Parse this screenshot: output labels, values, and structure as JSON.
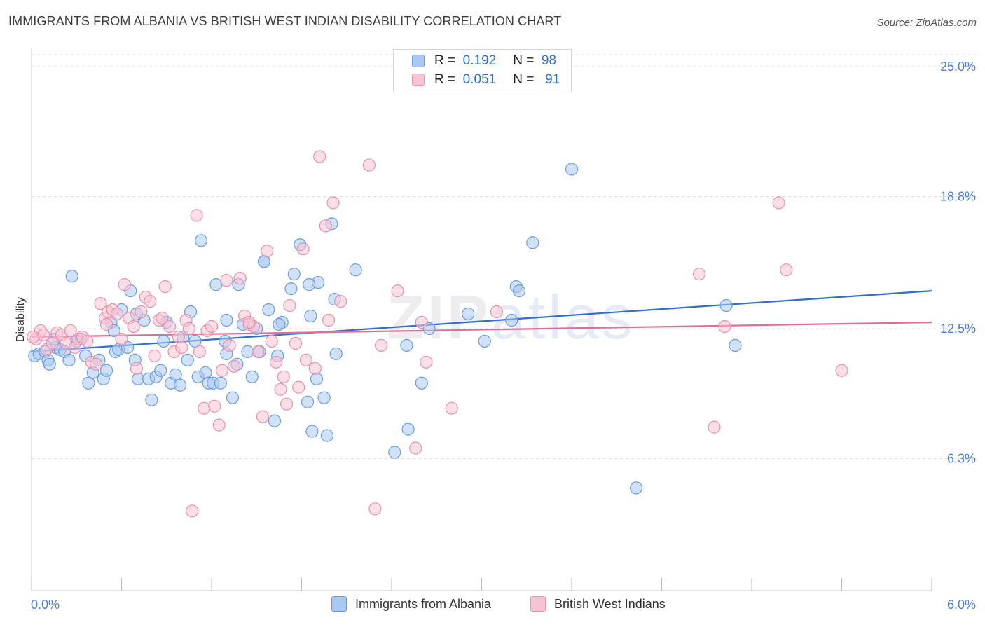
{
  "title": "IMMIGRANTS FROM ALBANIA VS BRITISH WEST INDIAN DISABILITY CORRELATION CHART",
  "source": "Source: ZipAtlas.com",
  "watermark": {
    "zip": "ZIP",
    "atlas": "atlas"
  },
  "legend": {
    "rows": [
      {
        "r_label": "R =",
        "r_value": "0.192",
        "n_label": "N =",
        "n_value": "98",
        "color": "#a9c8f2",
        "border": "#6a9de0"
      },
      {
        "r_label": "R =",
        "r_value": "0.051",
        "n_label": "N =",
        "n_value": "91",
        "color": "#f7c4d3",
        "border": "#e892ad"
      }
    ]
  },
  "bottom_legend": [
    {
      "label": "Immigrants from Albania",
      "color": "#a9c8f2",
      "border": "#6a9de0"
    },
    {
      "label": "British West Indians",
      "color": "#f7c4d3",
      "border": "#e892ad"
    }
  ],
  "chart_data": {
    "type": "scatter",
    "title": "IMMIGRANTS FROM ALBANIA VS BRITISH WEST INDIAN DISABILITY CORRELATION CHART",
    "xlabel": "",
    "ylabel": "Disability",
    "xlim": [
      0,
      6
    ],
    "ylim": [
      0,
      25.9
    ],
    "x_tick_labels": [
      "0.0%",
      "6.0%"
    ],
    "y_ticks": [
      6.3,
      12.5,
      18.8,
      25.0
    ],
    "y_tick_labels": [
      "6.3%",
      "12.5%",
      "18.8%",
      "25.0%"
    ],
    "grid": "horizontal dashed",
    "legend_position": "top-center",
    "series": [
      {
        "name": "Immigrants from Albania",
        "color": "#6a9de0",
        "fill": "#a9c8f2",
        "trend": {
          "x": [
            0,
            6
          ],
          "y": [
            11.4,
            14.3
          ],
          "color": "#2e6fd0"
        },
        "points": [
          [
            0.02,
            11.2
          ],
          [
            0.05,
            11.3
          ],
          [
            0.09,
            11.4
          ],
          [
            0.11,
            11.0
          ],
          [
            0.12,
            10.8
          ],
          [
            0.16,
            11.6
          ],
          [
            0.19,
            11.5
          ],
          [
            0.22,
            11.4
          ],
          [
            0.25,
            11.0
          ],
          [
            0.27,
            15.0
          ],
          [
            0.33,
            12.0
          ],
          [
            0.36,
            11.2
          ],
          [
            0.38,
            9.9
          ],
          [
            0.41,
            10.4
          ],
          [
            0.45,
            11.0
          ],
          [
            0.48,
            10.1
          ],
          [
            0.5,
            10.5
          ],
          [
            0.53,
            12.8
          ],
          [
            0.56,
            11.4
          ],
          [
            0.58,
            11.5
          ],
          [
            0.6,
            13.4
          ],
          [
            0.64,
            11.6
          ],
          [
            0.66,
            14.3
          ],
          [
            0.69,
            11.0
          ],
          [
            0.71,
            10.1
          ],
          [
            0.75,
            12.9
          ],
          [
            0.78,
            10.1
          ],
          [
            0.8,
            9.1
          ],
          [
            0.83,
            10.2
          ],
          [
            0.86,
            10.5
          ],
          [
            0.88,
            11.9
          ],
          [
            0.9,
            12.8
          ],
          [
            0.93,
            9.9
          ],
          [
            0.96,
            10.3
          ],
          [
            0.99,
            9.8
          ],
          [
            1.01,
            12.1
          ],
          [
            1.04,
            11.0
          ],
          [
            1.06,
            13.3
          ],
          [
            1.09,
            11.9
          ],
          [
            1.11,
            10.2
          ],
          [
            1.13,
            16.7
          ],
          [
            1.16,
            10.4
          ],
          [
            1.18,
            9.9
          ],
          [
            1.21,
            9.9
          ],
          [
            1.23,
            14.6
          ],
          [
            1.26,
            9.9
          ],
          [
            1.29,
            11.9
          ],
          [
            1.3,
            12.9
          ],
          [
            1.34,
            9.2
          ],
          [
            1.37,
            10.8
          ],
          [
            1.38,
            14.6
          ],
          [
            1.41,
            12.7
          ],
          [
            1.44,
            11.4
          ],
          [
            1.47,
            10.2
          ],
          [
            1.5,
            12.5
          ],
          [
            1.52,
            11.4
          ],
          [
            1.55,
            15.7
          ],
          [
            1.58,
            13.4
          ],
          [
            1.62,
            8.1
          ],
          [
            1.64,
            11.2
          ],
          [
            1.67,
            12.8
          ],
          [
            1.73,
            14.4
          ],
          [
            1.75,
            15.1
          ],
          [
            1.79,
            16.5
          ],
          [
            1.84,
            9.0
          ],
          [
            1.86,
            13.1
          ],
          [
            1.87,
            7.6
          ],
          [
            1.9,
            10.1
          ],
          [
            1.91,
            14.7
          ],
          [
            1.95,
            9.2
          ],
          [
            1.97,
            7.4
          ],
          [
            2.0,
            17.5
          ],
          [
            2.02,
            13.9
          ],
          [
            2.03,
            11.3
          ],
          [
            2.16,
            15.3
          ],
          [
            2.42,
            6.6
          ],
          [
            2.5,
            11.7
          ],
          [
            2.51,
            7.7
          ],
          [
            2.6,
            9.9
          ],
          [
            2.91,
            13.2
          ],
          [
            3.02,
            11.9
          ],
          [
            3.2,
            12.9
          ],
          [
            3.23,
            14.5
          ],
          [
            3.25,
            14.3
          ],
          [
            3.34,
            16.6
          ],
          [
            3.6,
            20.1
          ],
          [
            4.03,
            4.9
          ],
          [
            4.63,
            13.6
          ],
          [
            4.69,
            11.7
          ],
          [
            0.15,
            12.0
          ],
          [
            0.3,
            11.9
          ],
          [
            1.3,
            11.3
          ],
          [
            0.7,
            13.2
          ],
          [
            1.65,
            12.7
          ],
          [
            1.55,
            15.7
          ],
          [
            2.65,
            12.5
          ],
          [
            1.85,
            14.6
          ],
          [
            0.55,
            12.4
          ]
        ]
      },
      {
        "name": "British West Indians",
        "color": "#e892ad",
        "fill": "#f7c4d3",
        "trend": {
          "x": [
            0,
            6
          ],
          "y": [
            12.1,
            12.8
          ],
          "color": "#e46a97"
        },
        "points": [
          [
            0.03,
            12.0
          ],
          [
            0.06,
            12.4
          ],
          [
            0.08,
            12.2
          ],
          [
            0.1,
            11.5
          ],
          [
            0.14,
            11.8
          ],
          [
            0.17,
            12.3
          ],
          [
            0.2,
            12.2
          ],
          [
            0.23,
            11.8
          ],
          [
            0.26,
            12.4
          ],
          [
            0.29,
            11.6
          ],
          [
            0.31,
            12.0
          ],
          [
            0.34,
            12.1
          ],
          [
            0.37,
            11.9
          ],
          [
            0.4,
            10.9
          ],
          [
            0.43,
            10.8
          ],
          [
            0.46,
            13.7
          ],
          [
            0.49,
            13.0
          ],
          [
            0.51,
            13.3
          ],
          [
            0.54,
            13.4
          ],
          [
            0.57,
            13.2
          ],
          [
            0.62,
            14.6
          ],
          [
            0.65,
            13.0
          ],
          [
            0.68,
            12.6
          ],
          [
            0.7,
            10.6
          ],
          [
            0.73,
            13.3
          ],
          [
            0.76,
            14.0
          ],
          [
            0.79,
            13.8
          ],
          [
            0.82,
            11.2
          ],
          [
            0.85,
            12.9
          ],
          [
            0.87,
            13.0
          ],
          [
            0.89,
            14.5
          ],
          [
            0.92,
            12.6
          ],
          [
            0.95,
            11.4
          ],
          [
            0.98,
            12.1
          ],
          [
            1.0,
            11.6
          ],
          [
            1.03,
            12.9
          ],
          [
            1.05,
            12.5
          ],
          [
            1.07,
            3.8
          ],
          [
            1.1,
            17.9
          ],
          [
            1.12,
            11.4
          ],
          [
            1.15,
            8.7
          ],
          [
            1.17,
            12.4
          ],
          [
            1.2,
            12.6
          ],
          [
            1.22,
            8.8
          ],
          [
            1.25,
            7.9
          ],
          [
            1.27,
            10.5
          ],
          [
            1.3,
            14.8
          ],
          [
            1.32,
            11.7
          ],
          [
            1.35,
            10.7
          ],
          [
            1.39,
            14.9
          ],
          [
            1.42,
            13.1
          ],
          [
            1.45,
            12.7
          ],
          [
            1.48,
            12.6
          ],
          [
            1.51,
            11.4
          ],
          [
            1.54,
            8.3
          ],
          [
            1.57,
            16.2
          ],
          [
            1.6,
            11.9
          ],
          [
            1.63,
            10.9
          ],
          [
            1.66,
            9.6
          ],
          [
            1.68,
            10.2
          ],
          [
            1.7,
            8.9
          ],
          [
            1.72,
            13.6
          ],
          [
            1.76,
            11.8
          ],
          [
            1.78,
            9.7
          ],
          [
            1.81,
            16.3
          ],
          [
            1.83,
            11.0
          ],
          [
            1.89,
            10.6
          ],
          [
            1.92,
            20.7
          ],
          [
            1.96,
            17.4
          ],
          [
            2.01,
            18.5
          ],
          [
            2.06,
            13.8
          ],
          [
            2.25,
            20.3
          ],
          [
            2.29,
            3.9
          ],
          [
            2.33,
            11.7
          ],
          [
            2.44,
            14.3
          ],
          [
            2.56,
            6.8
          ],
          [
            2.6,
            12.8
          ],
          [
            2.63,
            10.9
          ],
          [
            2.8,
            8.7
          ],
          [
            3.1,
            13.3
          ],
          [
            4.45,
            15.1
          ],
          [
            4.55,
            7.8
          ],
          [
            4.62,
            12.6
          ],
          [
            4.98,
            18.5
          ],
          [
            5.03,
            15.3
          ],
          [
            5.4,
            10.5
          ],
          [
            0.01,
            12.1
          ],
          [
            0.5,
            12.7
          ],
          [
            1.45,
            12.8
          ],
          [
            1.98,
            12.9
          ],
          [
            0.6,
            12.0
          ]
        ]
      }
    ]
  }
}
